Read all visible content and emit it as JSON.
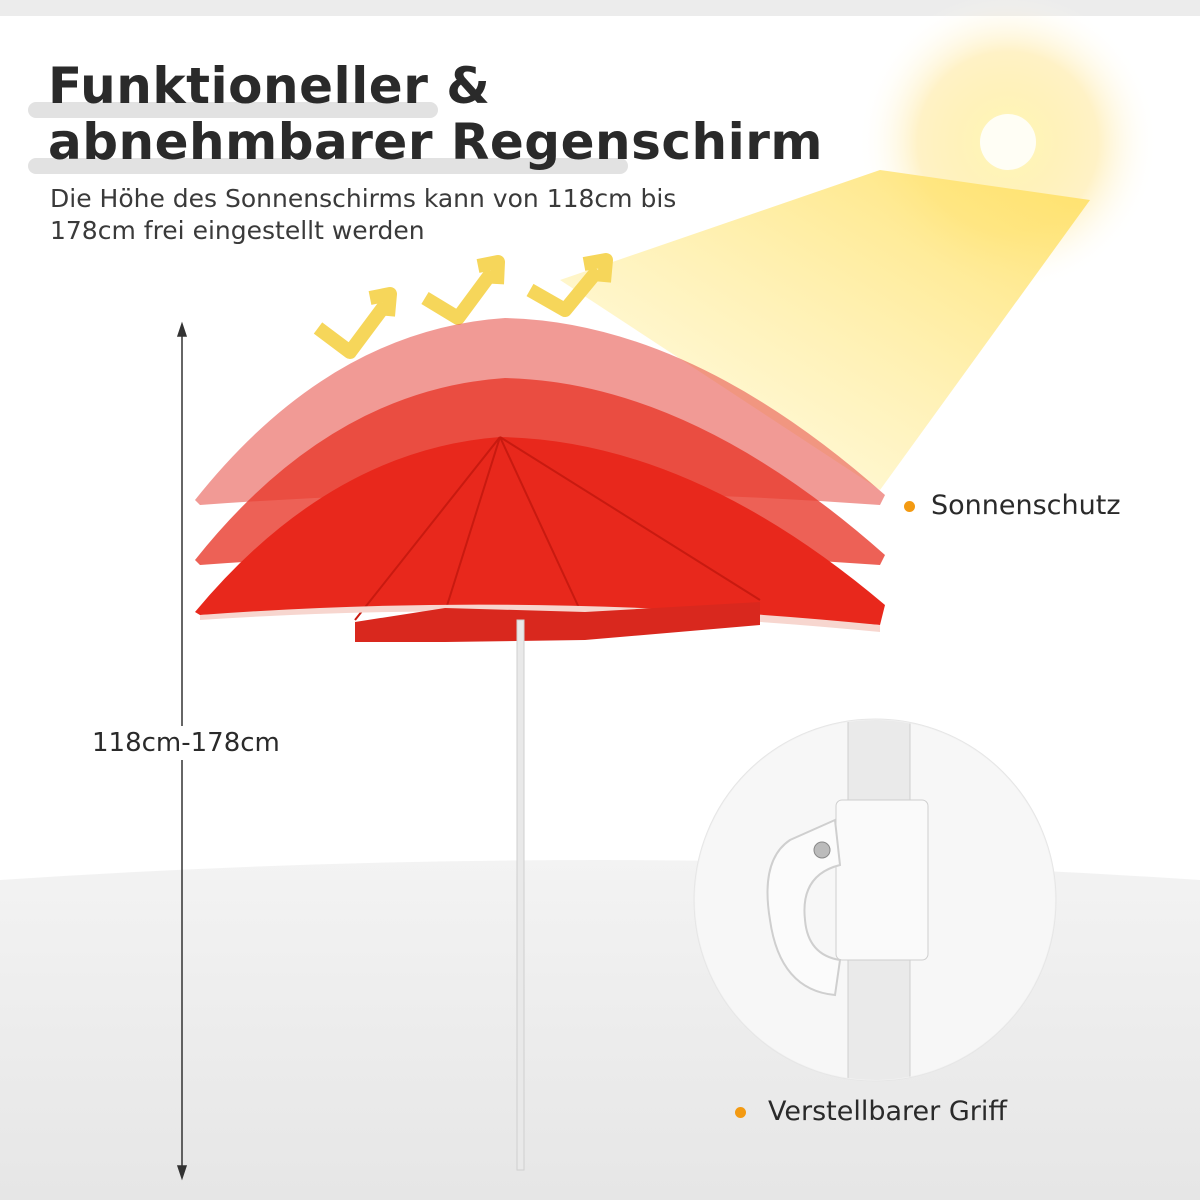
{
  "header": {
    "title_line1": "Funktioneller &",
    "title_line2": "abnehmbarer Regenschirm",
    "subtitle": "Die Höhe des Sonnenschirms kann von 118cm bis 178cm frei eingestellt werden"
  },
  "measurement": {
    "label": "118cm-178cm"
  },
  "features": [
    {
      "label": "Sonnenschutz"
    },
    {
      "label": "Verstellbarer Griff"
    }
  ],
  "colors": {
    "umbrella": "#e8281c",
    "bullet": "#f39a12",
    "sun": "#ffd84a"
  }
}
